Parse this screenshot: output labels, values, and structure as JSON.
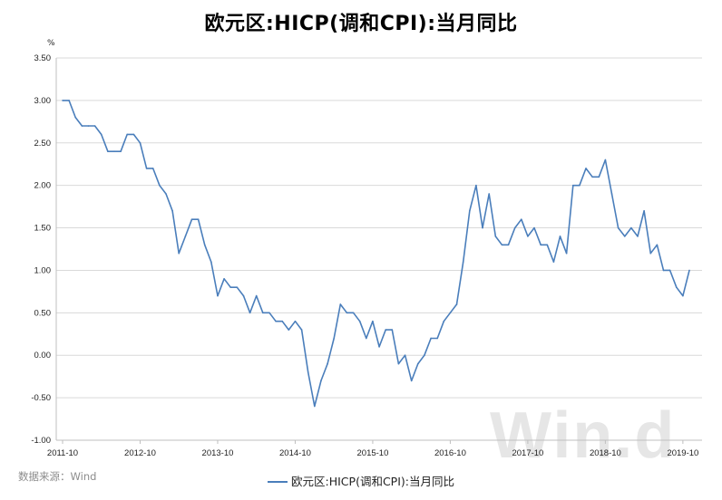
{
  "title": "欧元区:HICP(调和CPI):当月同比",
  "unit_label": "%",
  "source": "数据来源：Wind",
  "watermark": "Win.d",
  "colors": {
    "line": "#4a7ebb",
    "grid": "#d9d9d9"
  },
  "chart_data": {
    "type": "line",
    "title": "欧元区:HICP(调和CPI):当月同比",
    "ylabel": "%",
    "ylim": [
      -1.0,
      3.5
    ],
    "yticks": [
      "3.50",
      "3.00",
      "2.50",
      "2.00",
      "1.50",
      "1.00",
      "0.50",
      "0.00",
      "-0.50",
      "-1.00"
    ],
    "xticks": [
      "2011-10",
      "2012-10",
      "2013-10",
      "2014-10",
      "2015-10",
      "2016-10",
      "2017-10",
      "2018-10",
      "2019-10"
    ],
    "x_start": "2011-10",
    "x_end": "2019-10",
    "grid": "horizontal",
    "legend_position": "bottom",
    "series": [
      {
        "name": "欧元区:HICP(调和CPI):当月同比",
        "values": [
          3.0,
          3.0,
          2.8,
          2.7,
          2.7,
          2.7,
          2.6,
          2.4,
          2.4,
          2.4,
          2.6,
          2.6,
          2.5,
          2.2,
          2.2,
          2.0,
          1.9,
          1.7,
          1.2,
          1.4,
          1.6,
          1.6,
          1.3,
          1.1,
          0.7,
          0.9,
          0.8,
          0.8,
          0.7,
          0.5,
          0.7,
          0.5,
          0.5,
          0.4,
          0.4,
          0.3,
          0.4,
          0.3,
          -0.2,
          -0.6,
          -0.3,
          -0.1,
          0.2,
          0.6,
          0.5,
          0.5,
          0.4,
          0.2,
          0.4,
          0.1,
          0.3,
          0.3,
          -0.1,
          0.0,
          -0.3,
          -0.1,
          0.0,
          0.2,
          0.2,
          0.4,
          0.5,
          0.6,
          1.1,
          1.7,
          2.0,
          1.5,
          1.9,
          1.4,
          1.3,
          1.3,
          1.5,
          1.6,
          1.4,
          1.5,
          1.3,
          1.3,
          1.1,
          1.4,
          1.2,
          2.0,
          2.0,
          2.2,
          2.1,
          2.1,
          2.3,
          1.9,
          1.5,
          1.4,
          1.5,
          1.4,
          1.7,
          1.2,
          1.3,
          1.0,
          1.0,
          0.8,
          0.7,
          1.0
        ]
      }
    ]
  }
}
